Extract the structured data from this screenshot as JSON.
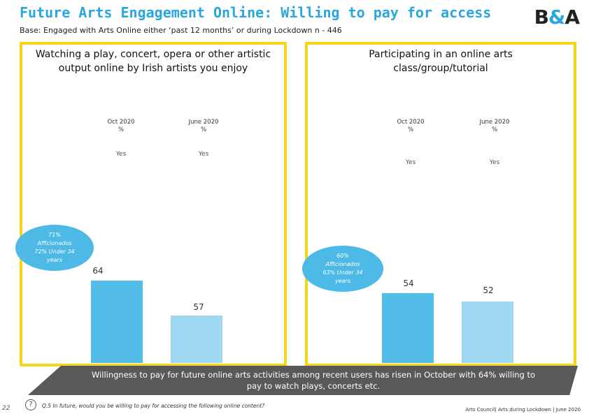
{
  "header": {
    "title": "Future Arts Engagement Online: Willing to pay for access",
    "subtitle": "Base: Engaged with Arts Online either ‘past 12 months’ or during Lockdown n - 446",
    "logo_left": "B",
    "logo_amp": "&",
    "logo_right": "A"
  },
  "colors": {
    "accent": "#2aa6df",
    "border": "#f6d617",
    "oct_bar": "#54bde7",
    "june_bar": "#9ed9f1",
    "banner": "#595959"
  },
  "chart_data": [
    {
      "type": "bar",
      "title": "Watching a play, concert, opera or other artistic output online by Irish artists you enjoy",
      "categories": [
        "Oct 2020 %",
        "June 2020 %"
      ],
      "column_headers": [
        {
          "period": "Oct 2020",
          "unit": "%"
        },
        {
          "period": "June 2020",
          "unit": "%"
        }
      ],
      "sub_label": "Yes",
      "values": [
        64,
        57
      ],
      "ylim": [
        0,
        100
      ],
      "callout": {
        "line1": "71%",
        "line2": "Afficionados",
        "line3": "72% Under 34",
        "line4": "years"
      }
    },
    {
      "type": "bar",
      "title": "Participating in an online arts class/group/tutorial",
      "categories": [
        "Oct 2020 %",
        "June 2020 %"
      ],
      "column_headers": [
        {
          "period": "Oct 2020",
          "unit": "%"
        },
        {
          "period": "June 2020",
          "unit": "%"
        }
      ],
      "sub_label": "Yes",
      "values": [
        54,
        52
      ],
      "ylim": [
        0,
        100
      ],
      "callout": {
        "line1": "60%",
        "line2": "Afficionados",
        "line3": "63% Under 34",
        "line4": "years"
      }
    }
  ],
  "banner": {
    "text": "Willingness to pay for future online arts activities among recent users has risen in October with 64% willing to pay to watch plays, concerts etc."
  },
  "footer": {
    "page_number": "22",
    "question_icon": "?",
    "question": "Q.5 In future, would you be willing to pay for accessing the following online content?",
    "right_text": "Arts Council| Arts during Lockdown | June 2020"
  }
}
